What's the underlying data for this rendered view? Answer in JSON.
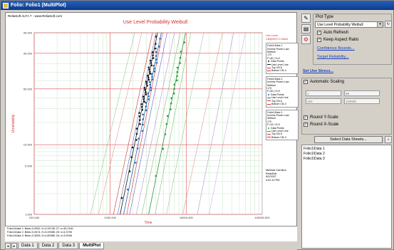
{
  "window": {
    "title": "Folio: Folio1 (MultiPlot)"
  },
  "plot": {
    "header_left": "ReliaSoft ALTA 7 - www.ReliaSoft.com",
    "title": "Use Level Probability Weibull",
    "ylabel": "Unreliability",
    "xlabel": "Time",
    "yticks": [
      "99.000",
      "90.000",
      "50.000",
      "10.000",
      "5.000",
      "1.000"
    ],
    "xticks": [
      "100.000",
      "1000.000",
      "10000.000",
      "100000.000"
    ],
    "legend_header": [
      "Use Level",
      "CB@95% 2-Sided"
    ],
    "legend_blocks": [
      {
        "title": "Folio1\\Data 1",
        "lines": [
          "Inverse Power Law",
          "Weibull",
          "170",
          "F=40 | S=0"
        ],
        "items": [
          "Data Points",
          "Use Level Line",
          "Top CB-II",
          "Bottom CB-II"
        ],
        "color": "#1a1a1a"
      },
      {
        "title": "Folio1\\Data 2",
        "lines": [
          "Inverse Power Law",
          "Weibull",
          "170",
          "F=30 | S=0"
        ],
        "items": [
          "Data Points",
          "Use Level Line",
          "Top CB-II",
          "Bottom CB-II"
        ],
        "color": "#2a6ab0"
      },
      {
        "title": "Folio1\\Data 3",
        "lines": [
          "Inverse Power Law",
          "Weibull",
          "170",
          "F=19 | S=0"
        ],
        "items": [
          "Data Points",
          "Use Level Line",
          "Top CB-II",
          "Bottom CB-II"
        ],
        "color": "#2a9a3a"
      }
    ],
    "signature": [
      "Melinda Carolina",
      "ReliaSoft",
      "5/2/2007",
      "4:02:10 PM"
    ],
    "summary_lines": [
      "Folio1\\Data 1: Beta=3.0092; K=3.2674E-27; n=35.2181",
      "Folio1\\Data 2: Beta=3.2674; K=3.0935E-25; n=4.3795",
      "Folio1\\Data 3: Beta=3.3263; K=4.8096E-26; n=3.9946"
    ]
  },
  "sheet_tabs": [
    "Data 1",
    "Data 2",
    "Data 3",
    "MultiPlot"
  ],
  "panel": {
    "plot_type_label": "Plot Type",
    "plot_type_value": "Use Level Probability Weibull",
    "auto_refresh": "Auto Refresh",
    "keep_aspect": "Keep Aspect Ratio",
    "confidence_link": "Confidence Bounds...",
    "target_link": "Target Reliability...",
    "set_use_stress": "Set Use Stress...",
    "automatic_scaling": "Automatic Scaling",
    "round_y": "Round Y-Scale",
    "round_x": "Round X-Scale",
    "select_sheets": "Select Data Sheets...",
    "sheets": [
      "Folio1\\Data 1",
      "Folio1\\Data 2",
      "Folio1\\Data 3"
    ],
    "scale_inputs": [
      "1",
      "99",
      "100",
      "100000"
    ]
  },
  "colors": {
    "grid_green": "#b8e0b8",
    "grid_red": "#e05050",
    "series1": "#1a1a1a",
    "series2": "#2a6ab0",
    "series3": "#2a9a3a"
  }
}
